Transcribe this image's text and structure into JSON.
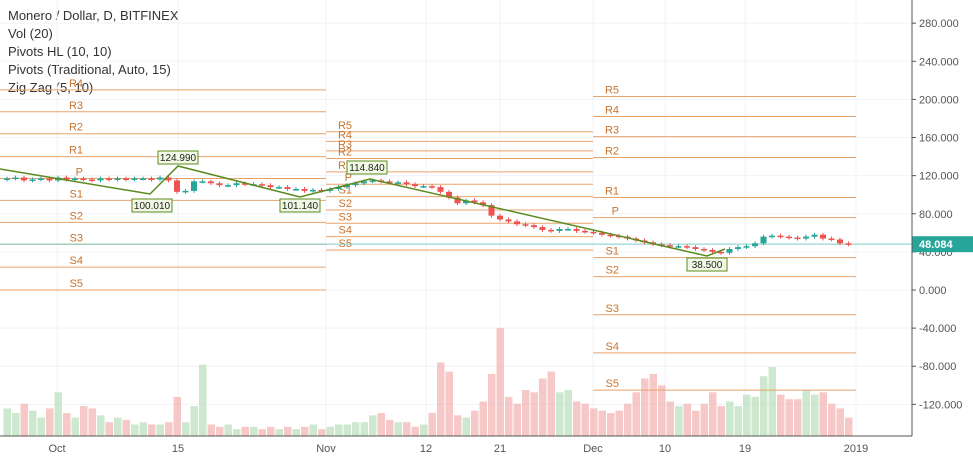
{
  "legend": {
    "title": "Monero / Dollar, D, BITFINEX",
    "vol": "Vol (20)",
    "pivots_hl": "Pivots HL (10, 10)",
    "pivots_trad": "Pivots (Traditional, Auto, 15)",
    "zigzag": "Zig Zag (5, 10)"
  },
  "colors": {
    "up": "#26a69a",
    "down": "#ef5350",
    "pivot": "#e8a36b",
    "zigzag": "#5a8a1e",
    "price_line": "#26a69a"
  },
  "current_price": "48.084",
  "chart_data": {
    "type": "candlestick",
    "y_ticks": [
      "280.000",
      "240.000",
      "200.000",
      "160.000",
      "120.000",
      "80.000",
      "40.000",
      "0.000",
      "-40.000",
      "-80.000",
      "-120.000"
    ],
    "x_ticks": [
      "Oct",
      "15",
      "Nov",
      "12",
      "21",
      "Dec",
      "10",
      "19",
      "2019"
    ],
    "pivot_sets": [
      {
        "levels": [
          {
            "label": "R4",
            "value": 210
          },
          {
            "label": "R3",
            "value": 187
          },
          {
            "label": "R2",
            "value": 164
          },
          {
            "label": "R1",
            "value": 140
          },
          {
            "label": "P",
            "value": 117
          },
          {
            "label": "S1",
            "value": 94
          },
          {
            "label": "S2",
            "value": 71
          },
          {
            "label": "S3",
            "value": 48
          },
          {
            "label": "S4",
            "value": 24
          },
          {
            "label": "S5",
            "value": 0
          }
        ]
      },
      {
        "levels": [
          {
            "label": "R5",
            "value": 166
          },
          {
            "label": "R4",
            "value": 156
          },
          {
            "label": "R3",
            "value": 146
          },
          {
            "label": "R2",
            "value": 138
          },
          {
            "label": "R1",
            "value": 124
          },
          {
            "label": "P",
            "value": 111
          },
          {
            "label": "S1",
            "value": 98
          },
          {
            "label": "S2",
            "value": 84
          },
          {
            "label": "S3",
            "value": 70
          },
          {
            "label": "S4",
            "value": 56
          },
          {
            "label": "S5",
            "value": 42
          }
        ]
      },
      {
        "levels": [
          {
            "label": "R5",
            "value": 203
          },
          {
            "label": "R4",
            "value": 182
          },
          {
            "label": "R3",
            "value": 161
          },
          {
            "label": "R2",
            "value": 139
          },
          {
            "label": "R1",
            "value": 97
          },
          {
            "label": "P",
            "value": 76
          },
          {
            "label": "S1",
            "value": 34
          },
          {
            "label": "S2",
            "value": 14
          },
          {
            "label": "S3",
            "value": -26
          },
          {
            "label": "S4",
            "value": -66
          },
          {
            "label": "S5",
            "value": -105
          }
        ]
      }
    ],
    "zigzag_labels": [
      "124.990",
      "100.010",
      "101.140",
      "114.840",
      "38.500"
    ],
    "closes": [
      117,
      118,
      115,
      116,
      117,
      115,
      118,
      116,
      117,
      116,
      115,
      117,
      116,
      117,
      116,
      117,
      117,
      116,
      118,
      115,
      103,
      104,
      114,
      114,
      112,
      110,
      110,
      112,
      111,
      111,
      110,
      108,
      108,
      106,
      106,
      104,
      105,
      104,
      106,
      108,
      110,
      112,
      114,
      115,
      114,
      113,
      113,
      111,
      109,
      109,
      108,
      103,
      97,
      91,
      94,
      92,
      89,
      78,
      74,
      72,
      69,
      68,
      66,
      63,
      62,
      64,
      64,
      62,
      61,
      60,
      58,
      57,
      56,
      54,
      52,
      50,
      48,
      47,
      46,
      46,
      45,
      43,
      42,
      40,
      39,
      43,
      45,
      46,
      49,
      56,
      57,
      56,
      55,
      54,
      56,
      58,
      54,
      53,
      49,
      48
    ],
    "volumes": [
      12,
      10,
      14,
      11,
      8,
      12,
      19,
      10,
      8,
      13,
      12,
      9,
      6,
      8,
      7,
      5,
      6,
      5,
      5,
      6,
      17,
      6,
      13,
      31,
      5,
      4,
      5,
      3,
      4,
      4,
      3,
      4,
      3,
      4,
      3,
      4,
      5,
      3,
      4,
      5,
      5,
      6,
      6,
      9,
      10,
      7,
      6,
      6,
      4,
      5,
      10,
      32,
      28,
      9,
      8,
      11,
      15,
      27,
      47,
      17,
      14,
      20,
      19,
      25,
      28,
      19,
      20,
      15,
      14,
      12,
      11,
      10,
      11,
      14,
      19,
      25,
      27,
      22,
      15,
      13,
      14,
      11,
      14,
      19,
      13,
      15,
      13,
      18,
      17,
      26,
      30,
      18,
      16,
      16,
      20,
      18,
      19,
      14,
      12,
      8
    ]
  }
}
